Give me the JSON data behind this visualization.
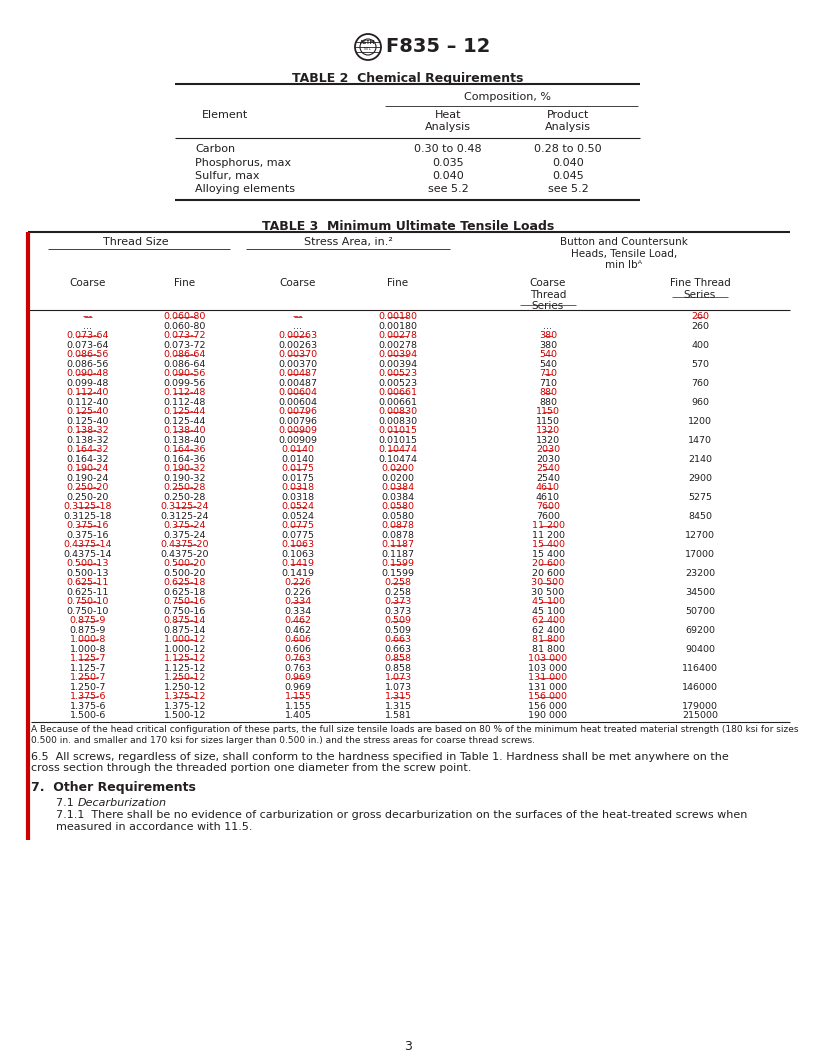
{
  "title": "F835 – 12",
  "table2_title": "TABLE 2  Chemical Requirements",
  "table3_title": "TABLE 3  Minimum Ultimate Tensile Loads",
  "footnote_a": "A Because of the head critical configuration of these parts, the full size tensile loads are based on 80 % of the minimum heat treated material strength (180 ksi for sizes\n0.500 in. and smaller and 170 ksi for sizes larger than 0.500 in.) and the stress areas for coarse thread screws.",
  "para_65": "6.5  All screws, regardless of size, shall conform to the hardness specified in Table 1. Hardness shall be met anywhere on the\ncross section through the threaded portion one diameter from the screw point.",
  "section7_title": "7.  Other Requirements",
  "para_71_prefix": "7.1  ",
  "para_71_italic": "Decarburization",
  "para_71_suffix": ":",
  "para_711": "7.1.1  There shall be no evidence of carburization or gross decarburization on the surfaces of the heat-treated screws when\nmeasured in accordance with 11.5.",
  "page_num": "3",
  "bg_color": "#ffffff",
  "text_color": "#231f20",
  "redline_color": "#cc0000"
}
